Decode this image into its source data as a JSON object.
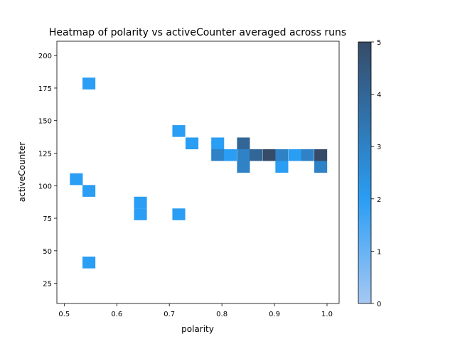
{
  "chart_data": {
    "type": "heatmap",
    "title": "Heatmap of polarity vs activeCounter averaged across runs",
    "xlabel": "polarity",
    "ylabel": "activeCounter",
    "xlim": [
      0.486,
      1.023
    ],
    "ylim": [
      9.5,
      211
    ],
    "xticks": [
      0.5,
      0.6,
      0.7,
      0.8,
      0.9,
      1.0
    ],
    "xtick_labels": [
      "0.5",
      "0.6",
      "0.7",
      "0.8",
      "0.9",
      "1.0"
    ],
    "yticks": [
      25,
      50,
      75,
      100,
      125,
      150,
      175,
      200
    ],
    "ytick_labels": [
      "25",
      "50",
      "75",
      "100",
      "125",
      "150",
      "175",
      "200"
    ],
    "bin_width_x": 0.0245,
    "bin_height_y": 9.05,
    "grid": false,
    "colorbar": {
      "range": [
        0,
        5
      ],
      "ticks": [
        0,
        1,
        2,
        3,
        4,
        5
      ],
      "tick_labels": [
        "0",
        "1",
        "2",
        "3",
        "4",
        "5"
      ],
      "color_low": "#a6c8f3",
      "color_mid": "#2a9df4",
      "color_high": "#364b68"
    },
    "cells": [
      {
        "x": 0.523,
        "y": 105.0,
        "value": 2
      },
      {
        "x": 0.547,
        "y": 96.0,
        "value": 2
      },
      {
        "x": 0.547,
        "y": 178.5,
        "value": 2
      },
      {
        "x": 0.547,
        "y": 41.0,
        "value": 2
      },
      {
        "x": 0.645,
        "y": 87.0,
        "value": 2
      },
      {
        "x": 0.645,
        "y": 78.0,
        "value": 2
      },
      {
        "x": 0.718,
        "y": 142.0,
        "value": 2
      },
      {
        "x": 0.718,
        "y": 78.0,
        "value": 2
      },
      {
        "x": 0.743,
        "y": 132.5,
        "value": 2
      },
      {
        "x": 0.792,
        "y": 132.5,
        "value": 2
      },
      {
        "x": 0.792,
        "y": 123.5,
        "value": 3
      },
      {
        "x": 0.816,
        "y": 123.5,
        "value": 2
      },
      {
        "x": 0.841,
        "y": 132.5,
        "value": 4
      },
      {
        "x": 0.841,
        "y": 123.5,
        "value": 3
      },
      {
        "x": 0.841,
        "y": 114.5,
        "value": 3
      },
      {
        "x": 0.865,
        "y": 123.5,
        "value": 4
      },
      {
        "x": 0.89,
        "y": 123.5,
        "value": 5
      },
      {
        "x": 0.914,
        "y": 123.5,
        "value": 3
      },
      {
        "x": 0.914,
        "y": 114.5,
        "value": 2
      },
      {
        "x": 0.939,
        "y": 123.5,
        "value": 2
      },
      {
        "x": 0.963,
        "y": 123.5,
        "value": 3
      },
      {
        "x": 0.988,
        "y": 123.5,
        "value": 5
      },
      {
        "x": 0.988,
        "y": 114.5,
        "value": 3
      }
    ]
  }
}
